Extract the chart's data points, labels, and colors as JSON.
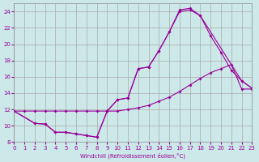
{
  "background_color": "#cce8e8",
  "grid_color": "#aaaaaa",
  "line_color": "#990099",
  "marker": "D",
  "marker_size": 2,
  "xlabel": "Windchill (Refroidissement éolien,°C)",
  "xlim": [
    0,
    23
  ],
  "ylim": [
    8,
    25
  ],
  "xticks": [
    0,
    1,
    2,
    3,
    4,
    5,
    6,
    7,
    8,
    9,
    10,
    11,
    12,
    13,
    14,
    15,
    16,
    17,
    18,
    19,
    20,
    21,
    22,
    23
  ],
  "yticks": [
    8,
    10,
    12,
    14,
    16,
    18,
    20,
    22,
    24
  ],
  "line1_x": [
    0,
    1,
    2,
    3,
    4,
    5,
    6,
    7,
    8,
    9,
    10,
    11,
    12,
    13,
    14,
    15,
    16,
    17,
    18,
    19,
    20,
    21,
    22,
    23
  ],
  "line1_y": [
    11.8,
    11.8,
    11.8,
    11.8,
    11.8,
    11.8,
    11.8,
    11.8,
    11.8,
    11.8,
    11.8,
    12.0,
    12.2,
    12.5,
    13.0,
    13.5,
    14.2,
    15.0,
    15.8,
    16.5,
    17.0,
    17.5,
    14.5,
    14.5
  ],
  "line2_x": [
    0,
    2,
    3,
    4,
    5,
    6,
    7,
    8,
    9,
    10,
    11,
    12,
    13,
    14,
    15,
    16,
    17,
    18,
    19,
    20,
    21,
    22,
    23
  ],
  "line2_y": [
    11.8,
    10.3,
    10.2,
    9.2,
    9.2,
    9.0,
    8.8,
    8.6,
    11.8,
    13.2,
    13.4,
    17.0,
    17.2,
    19.2,
    21.5,
    24.0,
    24.2,
    23.5,
    21.0,
    19.0,
    16.8,
    15.5,
    14.6
  ],
  "line3_x": [
    0,
    2,
    3,
    4,
    5,
    6,
    7,
    8,
    9,
    10,
    11,
    12,
    13,
    14,
    15,
    16,
    17,
    18,
    22,
    23
  ],
  "line3_y": [
    11.8,
    10.3,
    10.2,
    9.2,
    9.2,
    9.0,
    8.8,
    8.6,
    11.8,
    13.2,
    13.4,
    17.0,
    17.2,
    19.2,
    21.5,
    24.2,
    24.4,
    23.5,
    15.5,
    14.6
  ]
}
